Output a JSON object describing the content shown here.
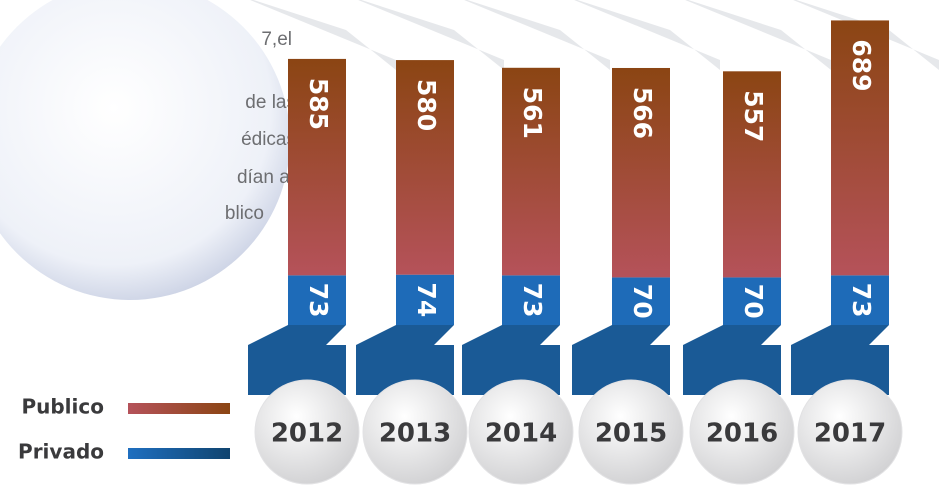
{
  "chart_data": {
    "type": "stacked-bar",
    "categories": [
      "2012",
      "2013",
      "2014",
      "2015",
      "2016",
      "2017"
    ],
    "series": [
      {
        "name": "Publico",
        "color": "#a0483a",
        "values": [
          585,
          580,
          561,
          566,
          557,
          689
        ]
      },
      {
        "name": "Privado",
        "color": "#1e6bb8",
        "values": [
          73,
          74,
          73,
          70,
          70,
          73
        ]
      }
    ],
    "annotations": [
      "7,el",
      "de las",
      "édicas",
      "dían al",
      "blico"
    ]
  }
}
